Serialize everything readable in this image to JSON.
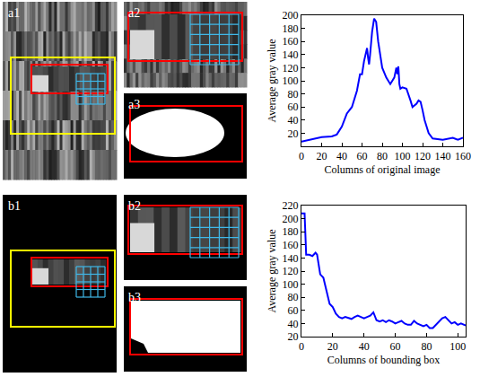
{
  "panels": {
    "a": [
      "a1",
      "a2",
      "a3"
    ],
    "b": [
      "b1",
      "b2",
      "b3"
    ]
  },
  "chart_data": [
    {
      "type": "line",
      "x_label": "Columns of original image",
      "y_label": "Average gray value",
      "x": [
        0,
        10,
        20,
        30,
        35,
        40,
        45,
        50,
        55,
        58,
        60,
        62,
        64,
        65,
        66,
        67,
        68,
        70,
        72,
        74,
        76,
        78,
        80,
        84,
        88,
        90,
        92,
        94,
        95,
        96,
        97,
        98,
        100,
        104,
        106,
        108,
        110,
        114,
        116,
        118,
        120,
        122,
        126,
        130,
        140,
        150,
        155,
        160
      ],
      "values": [
        7,
        10,
        14,
        15,
        18,
        30,
        50,
        60,
        85,
        110,
        110,
        130,
        145,
        150,
        135,
        125,
        140,
        175,
        195,
        190,
        160,
        140,
        120,
        105,
        95,
        100,
        105,
        120,
        110,
        122,
        95,
        88,
        90,
        88,
        80,
        70,
        60,
        65,
        70,
        68,
        55,
        40,
        20,
        12,
        10,
        13,
        10,
        13
      ],
      "color": "#0000ff",
      "xlim": [
        0,
        160
      ],
      "xticks": [
        0,
        20,
        40,
        60,
        80,
        100,
        120,
        140,
        160
      ],
      "ylim": [
        0,
        200
      ],
      "yticks": [
        20,
        40,
        60,
        80,
        100,
        120,
        140,
        160,
        180,
        200
      ],
      "grid": false
    },
    {
      "type": "line",
      "x_label": "Columns of bounding box",
      "y_label": "Average gray value",
      "x": [
        0,
        2,
        3,
        5,
        7,
        9,
        10,
        12,
        14,
        16,
        18,
        20,
        22,
        24,
        26,
        28,
        30,
        32,
        34,
        36,
        38,
        40,
        42,
        44,
        46,
        47,
        48,
        50,
        52,
        54,
        56,
        58,
        60,
        62,
        64,
        66,
        68,
        70,
        72,
        74,
        76,
        78,
        80,
        82,
        84,
        86,
        88,
        90,
        92,
        94,
        96,
        98,
        100,
        102,
        105
      ],
      "values": [
        208,
        208,
        145,
        145,
        143,
        148,
        145,
        115,
        110,
        90,
        70,
        65,
        55,
        50,
        48,
        50,
        48,
        47,
        50,
        52,
        50,
        48,
        50,
        52,
        57,
        50,
        45,
        43,
        45,
        42,
        45,
        43,
        40,
        42,
        44,
        40,
        38,
        38,
        44,
        40,
        38,
        36,
        38,
        33,
        33,
        38,
        42,
        48,
        50,
        45,
        40,
        42,
        38,
        40,
        37
      ],
      "color": "#0000ff",
      "xlim": [
        0,
        105
      ],
      "xticks": [
        0,
        20,
        40,
        60,
        80,
        100
      ],
      "ylim": [
        20,
        220
      ],
      "yticks": [
        20,
        40,
        60,
        80,
        100,
        120,
        140,
        160,
        180,
        200,
        220
      ],
      "grid": false
    }
  ]
}
